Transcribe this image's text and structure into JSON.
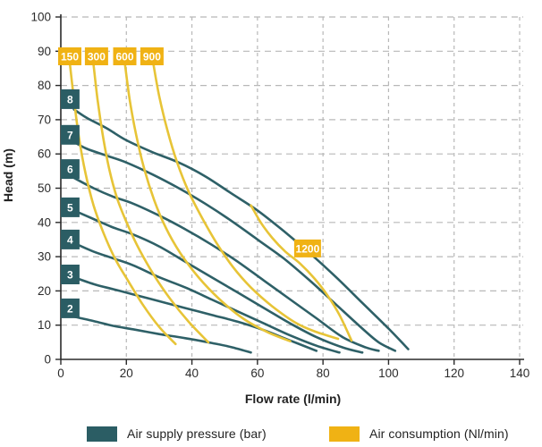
{
  "chart_data": {
    "type": "line",
    "title": "",
    "xlabel": "Flow rate (l/min)",
    "ylabel": "Head (m)",
    "xlim": [
      0,
      140
    ],
    "ylim": [
      0,
      100
    ],
    "x_ticks": [
      0,
      20,
      40,
      60,
      80,
      100,
      120,
      140
    ],
    "y_ticks": [
      0,
      10,
      20,
      30,
      40,
      50,
      60,
      70,
      80,
      90,
      100
    ],
    "grid": "dashed",
    "grid_color": "#b8b8b8",
    "axis_color": "#2a2a2a",
    "series_groups": [
      {
        "name": "Air supply pressure (bar)",
        "line_color": "#2E6067",
        "label_bg": "#2B5D64",
        "label_fg": "#ffffff",
        "series": [
          {
            "label": "2",
            "label_pos": {
              "flow": 2.85,
              "head": 14.9
            },
            "label_w": 21,
            "label_h": 22,
            "points": [
              [
                4,
                12.5
              ],
              [
                10,
                11.2
              ],
              [
                16,
                9.8
              ],
              [
                22,
                8.8
              ],
              [
                30,
                7.4
              ],
              [
                38,
                6.2
              ],
              [
                46,
                4.8
              ],
              [
                52,
                3.6
              ],
              [
                58,
                2
              ]
            ]
          },
          {
            "label": "3",
            "label_pos": {
              "flow": 2.85,
              "head": 24.8
            },
            "label_w": 21,
            "label_h": 22,
            "points": [
              [
                4,
                24
              ],
              [
                10,
                22
              ],
              [
                16,
                20.5
              ],
              [
                22,
                19
              ],
              [
                30,
                17
              ],
              [
                38,
                15
              ],
              [
                46,
                13
              ],
              [
                54,
                11
              ],
              [
                62,
                8.5
              ],
              [
                70,
                5.5
              ],
              [
                78,
                2.5
              ]
            ]
          },
          {
            "label": "4",
            "label_pos": {
              "flow": 2.85,
              "head": 35.0
            },
            "label_w": 21,
            "label_h": 22,
            "points": [
              [
                4,
                34
              ],
              [
                10,
                31.5
              ],
              [
                16,
                29.5
              ],
              [
                22,
                27.5
              ],
              [
                30,
                24
              ],
              [
                38,
                21
              ],
              [
                46,
                17.5
              ],
              [
                54,
                14
              ],
              [
                62,
                10.5
              ],
              [
                70,
                7
              ],
              [
                78,
                4
              ],
              [
                85,
                2
              ]
            ]
          },
          {
            "label": "5",
            "label_pos": {
              "flow": 2.85,
              "head": 44.4
            },
            "label_w": 21,
            "label_h": 22,
            "points": [
              [
                4,
                43.5
              ],
              [
                10,
                41
              ],
              [
                16,
                38.5
              ],
              [
                22,
                36.5
              ],
              [
                30,
                33
              ],
              [
                38,
                28.5
              ],
              [
                46,
                24
              ],
              [
                54,
                19.5
              ],
              [
                62,
                15
              ],
              [
                70,
                10.5
              ],
              [
                78,
                6.5
              ],
              [
                86,
                3.5
              ],
              [
                92,
                2
              ]
            ]
          },
          {
            "label": "6",
            "label_pos": {
              "flow": 2.85,
              "head": 55.6
            },
            "label_w": 21,
            "label_h": 22,
            "points": [
              [
                4,
                53
              ],
              [
                10,
                50
              ],
              [
                16,
                47.5
              ],
              [
                22,
                45.5
              ],
              [
                30,
                42
              ],
              [
                38,
                38
              ],
              [
                46,
                33.5
              ],
              [
                54,
                28.5
              ],
              [
                62,
                23
              ],
              [
                70,
                17.5
              ],
              [
                78,
                12
              ],
              [
                86,
                6.5
              ],
              [
                93,
                3.5
              ],
              [
                97,
                2.5
              ]
            ]
          },
          {
            "label": "7",
            "label_pos": {
              "flow": 2.85,
              "head": 65.6
            },
            "label_w": 21,
            "label_h": 22,
            "points": [
              [
                4,
                63.5
              ],
              [
                8,
                61.5
              ],
              [
                14,
                59.5
              ],
              [
                20,
                57.5
              ],
              [
                28,
                54
              ],
              [
                36,
                50
              ],
              [
                44,
                45.5
              ],
              [
                52,
                40.5
              ],
              [
                60,
                35
              ],
              [
                68,
                29.5
              ],
              [
                76,
                23
              ],
              [
                84,
                16
              ],
              [
                92,
                9
              ],
              [
                97,
                5
              ],
              [
                102,
                2.5
              ]
            ]
          },
          {
            "label": "8",
            "label_pos": {
              "flow": 2.85,
              "head": 76.0
            },
            "label_w": 21,
            "label_h": 22,
            "points": [
              [
                4,
                73
              ],
              [
                8,
                70.5
              ],
              [
                14,
                67.5
              ],
              [
                20,
                64
              ],
              [
                28,
                60.5
              ],
              [
                36,
                57.5
              ],
              [
                44,
                53.5
              ],
              [
                52,
                48.5
              ],
              [
                60,
                43.5
              ],
              [
                68,
                37.5
              ],
              [
                76,
                31
              ],
              [
                84,
                24
              ],
              [
                92,
                16.5
              ],
              [
                100,
                9
              ],
              [
                106,
                3
              ]
            ]
          }
        ]
      },
      {
        "name": "Air consumption (Nl/min)",
        "line_color": "#E7C437",
        "label_bg": "#F0B214",
        "label_fg": "#ffffff",
        "series": [
          {
            "label": "150",
            "label_pos": {
              "flow": 2.73,
              "head": 88.5
            },
            "label_w": 26,
            "label_h": 20,
            "points": [
              [
                2.8,
                86
              ],
              [
                4,
                76
              ],
              [
                5.5,
                65
              ],
              [
                7.5,
                54.5
              ],
              [
                10,
                45
              ],
              [
                13,
                37
              ],
              [
                16.5,
                29.5
              ],
              [
                20.5,
                23
              ],
              [
                25,
                16
              ],
              [
                30,
                9.5
              ],
              [
                35,
                4.5
              ]
            ]
          },
          {
            "label": "300",
            "label_pos": {
              "flow": 10.9,
              "head": 88.5
            },
            "label_w": 26,
            "label_h": 20,
            "points": [
              [
                10,
                86
              ],
              [
                11.2,
                76
              ],
              [
                12.8,
                65.5
              ],
              [
                14.8,
                55.5
              ],
              [
                17.2,
                47
              ],
              [
                20.3,
                39.5
              ],
              [
                24,
                32
              ],
              [
                28.5,
                24.5
              ],
              [
                33.5,
                17.5
              ],
              [
                39,
                11
              ],
              [
                45,
                5
              ]
            ]
          },
          {
            "label": "600",
            "label_pos": {
              "flow": 19.5,
              "head": 88.5
            },
            "label_w": 26,
            "label_h": 20,
            "points": [
              [
                19.6,
                86
              ],
              [
                21,
                76
              ],
              [
                23,
                65.5
              ],
              [
                25.5,
                55.5
              ],
              [
                28.5,
                46.5
              ],
              [
                32,
                38.5
              ],
              [
                36.5,
                31
              ],
              [
                42,
                24
              ],
              [
                48.5,
                17.5
              ],
              [
                55.5,
                12
              ],
              [
                63,
                8
              ],
              [
                70,
                5.3
              ]
            ]
          },
          {
            "label": "900",
            "label_pos": {
              "flow": 27.8,
              "head": 88.5
            },
            "label_w": 26,
            "label_h": 20,
            "points": [
              [
                28.3,
                86
              ],
              [
                30,
                77
              ],
              [
                32.5,
                67
              ],
              [
                35.5,
                57.5
              ],
              [
                39,
                49
              ],
              [
                43,
                41.5
              ],
              [
                47.5,
                34
              ],
              [
                52.5,
                27
              ],
              [
                58,
                21
              ],
              [
                64.5,
                15.5
              ],
              [
                72,
                10.5
              ],
              [
                78,
                8
              ],
              [
                84.6,
                6
              ]
            ]
          },
          {
            "label": "1200",
            "label_pos": {
              "flow": 75.3,
              "head": 32.4
            },
            "label_w": 30,
            "label_h": 20,
            "points": [
              [
                58,
                45
              ],
              [
                61,
                40
              ],
              [
                64.5,
                35.5
              ],
              [
                68.5,
                31.5
              ],
              [
                73,
                28
              ],
              [
                77.5,
                23.5
              ],
              [
                81.5,
                18.5
              ],
              [
                85,
                13
              ],
              [
                88.7,
                5.5
              ]
            ]
          }
        ]
      }
    ]
  },
  "legend": {
    "items": [
      {
        "label": "Air supply pressure (bar)",
        "color": "#2B5D64"
      },
      {
        "label": "Air consumption (Nl/min)",
        "color": "#F0B214"
      }
    ]
  }
}
